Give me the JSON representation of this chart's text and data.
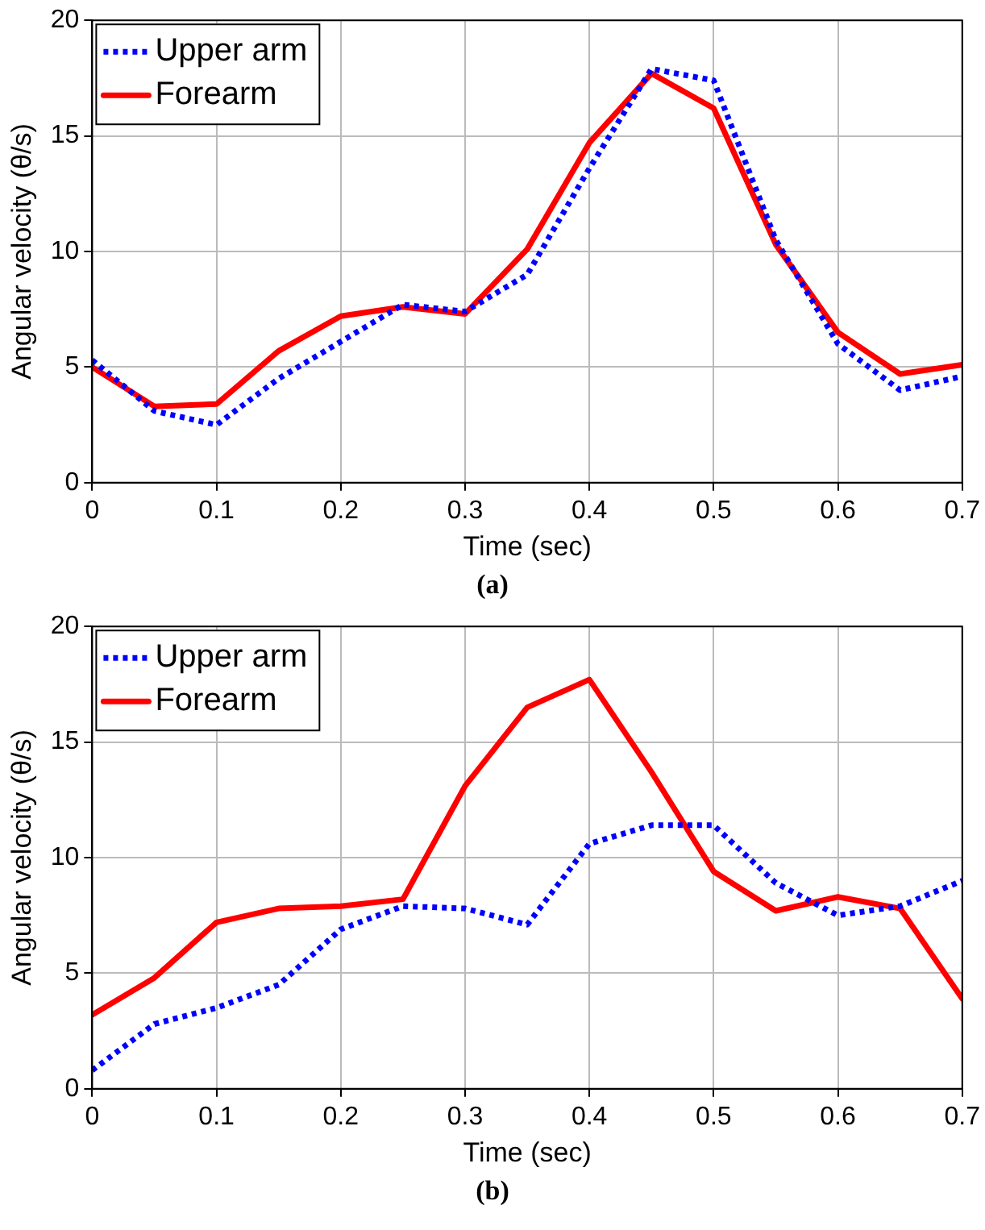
{
  "chart_data": [
    {
      "type": "line",
      "xlabel": "Time (sec)",
      "ylabel": "Angular velocity (θ/s)",
      "annotations": [
        "(a)"
      ],
      "x": [
        0,
        0.05,
        0.1,
        0.15,
        0.2,
        0.25,
        0.3,
        0.35,
        0.4,
        0.45,
        0.5,
        0.55,
        0.6,
        0.65,
        0.7
      ],
      "xlim": [
        0,
        0.7
      ],
      "xticks": [
        0,
        0.1,
        0.2,
        0.3,
        0.4,
        0.5,
        0.6,
        0.7
      ],
      "ylim": [
        0,
        20
      ],
      "yticks": [
        0,
        5,
        10,
        15,
        20
      ],
      "grid": true,
      "legend": "top left",
      "marker": "none",
      "series": [
        {
          "name": "Upper arm",
          "color": "#0000ff",
          "line_style": "dotted",
          "values": [
            5.3,
            3.1,
            2.5,
            4.5,
            6.1,
            7.7,
            7.4,
            9.0,
            13.6,
            17.9,
            17.4,
            10.5,
            6.0,
            4.0,
            4.6
          ]
        },
        {
          "name": "Forearm",
          "color": "#ff0000",
          "line_style": "solid",
          "values": [
            5.0,
            3.3,
            3.4,
            5.7,
            7.2,
            7.6,
            7.3,
            10.1,
            14.7,
            17.7,
            16.2,
            10.3,
            6.5,
            4.7,
            5.1
          ]
        }
      ]
    },
    {
      "type": "line",
      "xlabel": "Time (sec)",
      "ylabel": "Angular velocity (θ/s)",
      "annotations": [
        "(b)"
      ],
      "x": [
        0,
        0.05,
        0.1,
        0.15,
        0.2,
        0.25,
        0.3,
        0.35,
        0.4,
        0.45,
        0.5,
        0.55,
        0.6,
        0.65,
        0.7
      ],
      "xlim": [
        0,
        0.7
      ],
      "xticks": [
        0,
        0.1,
        0.2,
        0.3,
        0.4,
        0.5,
        0.6,
        0.7
      ],
      "ylim": [
        0,
        20
      ],
      "yticks": [
        0,
        5,
        10,
        15,
        20
      ],
      "grid": true,
      "legend": "top left",
      "marker": "none",
      "series": [
        {
          "name": "Upper arm",
          "color": "#0000ff",
          "line_style": "dotted",
          "values": [
            0.8,
            2.8,
            3.5,
            4.5,
            6.9,
            7.9,
            7.8,
            7.1,
            10.6,
            11.4,
            11.4,
            8.9,
            7.5,
            7.9,
            9.0
          ]
        },
        {
          "name": "Forearm",
          "color": "#ff0000",
          "line_style": "solid",
          "values": [
            3.2,
            4.8,
            7.2,
            7.8,
            7.9,
            8.2,
            13.1,
            16.5,
            17.7,
            13.7,
            9.4,
            7.7,
            8.3,
            7.8,
            3.9
          ]
        }
      ]
    }
  ]
}
